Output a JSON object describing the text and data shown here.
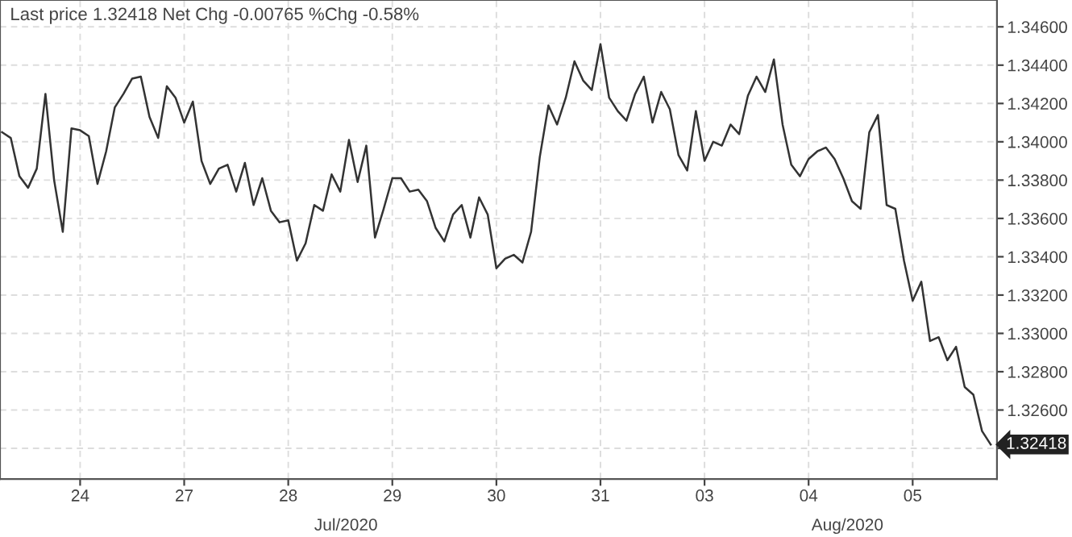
{
  "chart_data": {
    "type": "line",
    "title": "Last price 1.32418 Net Chg -0.00765 %Chg -0.58%",
    "categories": [
      null,
      null,
      null,
      null,
      null,
      null,
      null,
      null,
      null,
      "24",
      null,
      null,
      null,
      null,
      null,
      null,
      null,
      null,
      null,
      null,
      null,
      "27",
      null,
      null,
      null,
      null,
      null,
      null,
      null,
      null,
      null,
      null,
      null,
      "28",
      null,
      null,
      null,
      null,
      null,
      null,
      null,
      null,
      null,
      null,
      null,
      "29",
      null,
      null,
      null,
      null,
      null,
      null,
      null,
      null,
      null,
      null,
      null,
      "30",
      null,
      null,
      null,
      null,
      null,
      null,
      null,
      null,
      null,
      null,
      null,
      "31",
      null,
      null,
      null,
      null,
      null,
      null,
      null,
      null,
      null,
      null,
      null,
      "03",
      null,
      null,
      null,
      null,
      null,
      null,
      null,
      null,
      null,
      null,
      null,
      "04",
      null,
      null,
      null,
      null,
      null,
      null,
      null,
      null,
      null,
      null,
      null,
      "05",
      null,
      null,
      null,
      null,
      null,
      null,
      null,
      null,
      null
    ],
    "series": [
      {
        "color": "#333333",
        "values": [
          1.3405,
          1.3402,
          1.3382,
          1.3376,
          1.3386,
          1.3425,
          1.338,
          1.3353,
          1.3407,
          1.3406,
          1.3403,
          1.3378,
          1.3395,
          1.3418,
          1.3425,
          1.3433,
          1.3434,
          1.3413,
          1.3402,
          1.3429,
          1.3423,
          1.341,
          1.3421,
          1.339,
          1.3378,
          1.3386,
          1.3388,
          1.3374,
          1.3389,
          1.3367,
          1.3381,
          1.3364,
          1.3358,
          1.3359,
          1.3338,
          1.3347,
          1.3367,
          1.3364,
          1.3383,
          1.3374,
          1.3401,
          1.3379,
          1.3398,
          1.335,
          1.3365,
          1.3381,
          1.3381,
          1.3374,
          1.3375,
          1.3369,
          1.3355,
          1.3348,
          1.3362,
          1.3367,
          1.335,
          1.3371,
          1.3362,
          1.3334,
          1.3339,
          1.3341,
          1.3337,
          1.3353,
          1.3392,
          1.3419,
          1.3409,
          1.3423,
          1.3442,
          1.3432,
          1.3427,
          1.3451,
          1.3423,
          1.3416,
          1.3411,
          1.3425,
          1.3434,
          1.341,
          1.3426,
          1.3417,
          1.3393,
          1.3385,
          1.3416,
          1.339,
          1.34,
          1.3398,
          1.3409,
          1.3404,
          1.3424,
          1.3434,
          1.3426,
          1.3443,
          1.3409,
          1.3388,
          1.3382,
          1.3391,
          1.3395,
          1.3397,
          1.3391,
          1.3381,
          1.3369,
          1.3365,
          1.3405,
          1.3414,
          1.3367,
          1.3365,
          1.3338,
          1.3317,
          1.3327,
          1.3296,
          1.3298,
          1.3286,
          1.3293,
          1.3272,
          1.3268,
          1.3249,
          1.3242
        ]
      }
    ],
    "ylim": [
      1.3224,
      1.3474
    ],
    "yticks": [
      {
        "value": 1.324,
        "label": null
      },
      {
        "value": 1.326,
        "label": "1.32600"
      },
      {
        "value": 1.328,
        "label": "1.32800"
      },
      {
        "value": 1.33,
        "label": "1.33000"
      },
      {
        "value": 1.332,
        "label": "1.33200"
      },
      {
        "value": 1.334,
        "label": "1.33400"
      },
      {
        "value": 1.336,
        "label": "1.33600"
      },
      {
        "value": 1.338,
        "label": "1.33800"
      },
      {
        "value": 1.34,
        "label": "1.34000"
      },
      {
        "value": 1.342,
        "label": "1.34200"
      },
      {
        "value": 1.344,
        "label": "1.34400"
      },
      {
        "value": 1.346,
        "label": "1.34600"
      }
    ],
    "annotations": [
      "1.32418",
      "Jul/2020",
      "Aug/2020"
    ],
    "grid": true,
    "line_style": "solid",
    "marker": "none"
  }
}
